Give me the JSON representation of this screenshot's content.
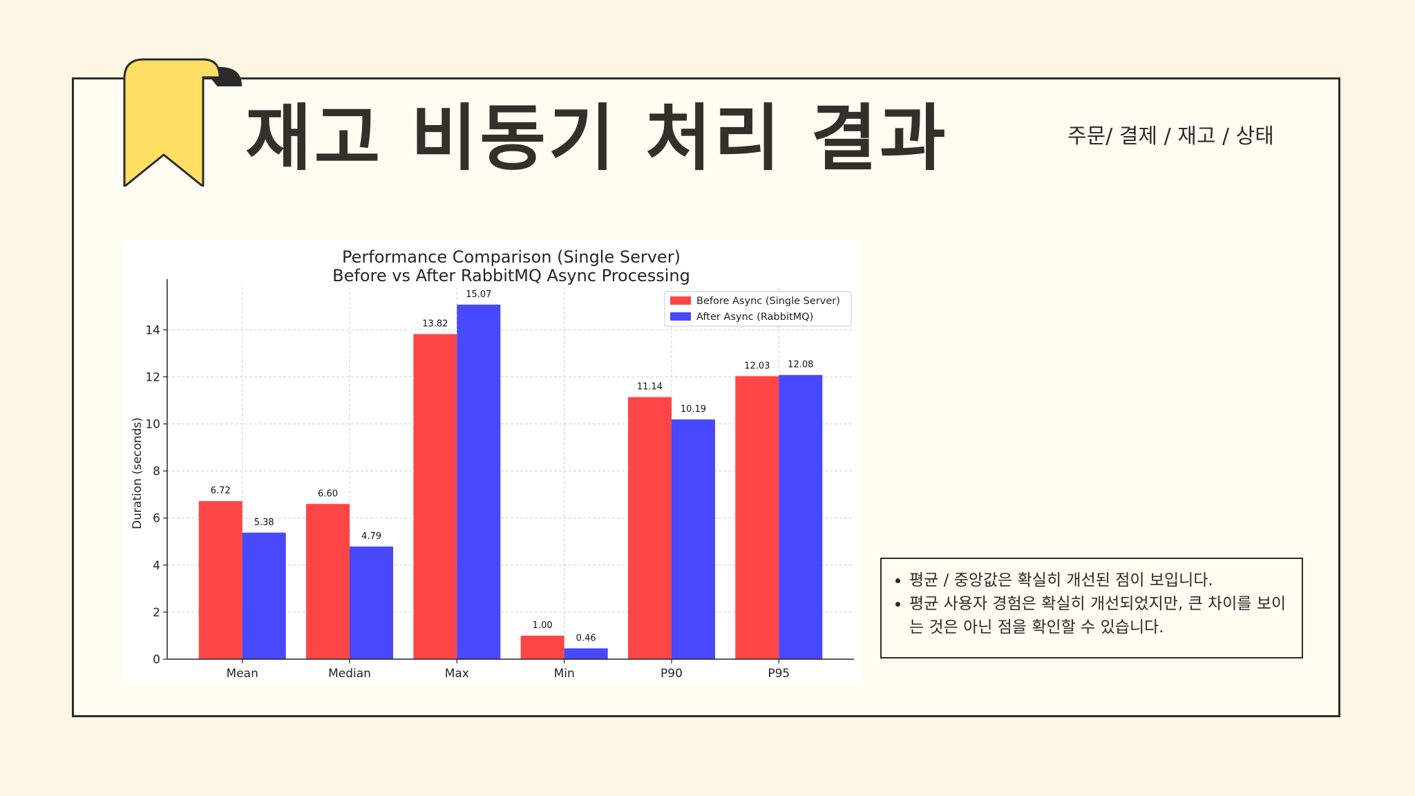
{
  "slide": {
    "title": "재고 비동기 처리 결과",
    "subtitle": "주문/ 결제 / 재고 / 상태",
    "notes": [
      "평균 / 중앙값은 확실히 개선된 점이 보입니다.",
      "평균 사용자 경험은 확실히 개선되었지만, 큰 차이를 보이는 것은 아닌 점을 확인할 수 있습니다."
    ],
    "colors": {
      "background": "#fdf6e2",
      "frame_border": "#2b2b2b",
      "bookmark": "#ffdf63",
      "title": "#33302c"
    }
  },
  "chart_data": {
    "type": "bar",
    "title_lines": [
      "Performance Comparison (Single Server)",
      "Before vs After RabbitMQ Async Processing"
    ],
    "xlabel": "",
    "ylabel": "Duration (seconds)",
    "categories": [
      "Mean",
      "Median",
      "Max",
      "Min",
      "P90",
      "P95"
    ],
    "series": [
      {
        "name": "Before Async (Single Server)",
        "color": "#ff4646",
        "values": [
          6.72,
          6.6,
          13.82,
          1.0,
          11.14,
          12.03
        ],
        "labels": [
          "6.72",
          "6.60",
          "13.82",
          "1.00",
          "11.14",
          "12.03"
        ]
      },
      {
        "name": "After Async (RabbitMQ)",
        "color": "#4848ff",
        "values": [
          5.38,
          4.79,
          15.07,
          0.46,
          10.19,
          12.08
        ],
        "labels": [
          "5.38",
          "4.79",
          "15.07",
          "0.46",
          "10.19",
          "12.08"
        ]
      }
    ],
    "yticks": [
      "0",
      "2",
      "4",
      "6",
      "8",
      "10",
      "12",
      "14"
    ],
    "ylim": [
      0,
      15.8
    ],
    "grid": true,
    "grid_style": "dashed",
    "legend_position": "top-right"
  }
}
